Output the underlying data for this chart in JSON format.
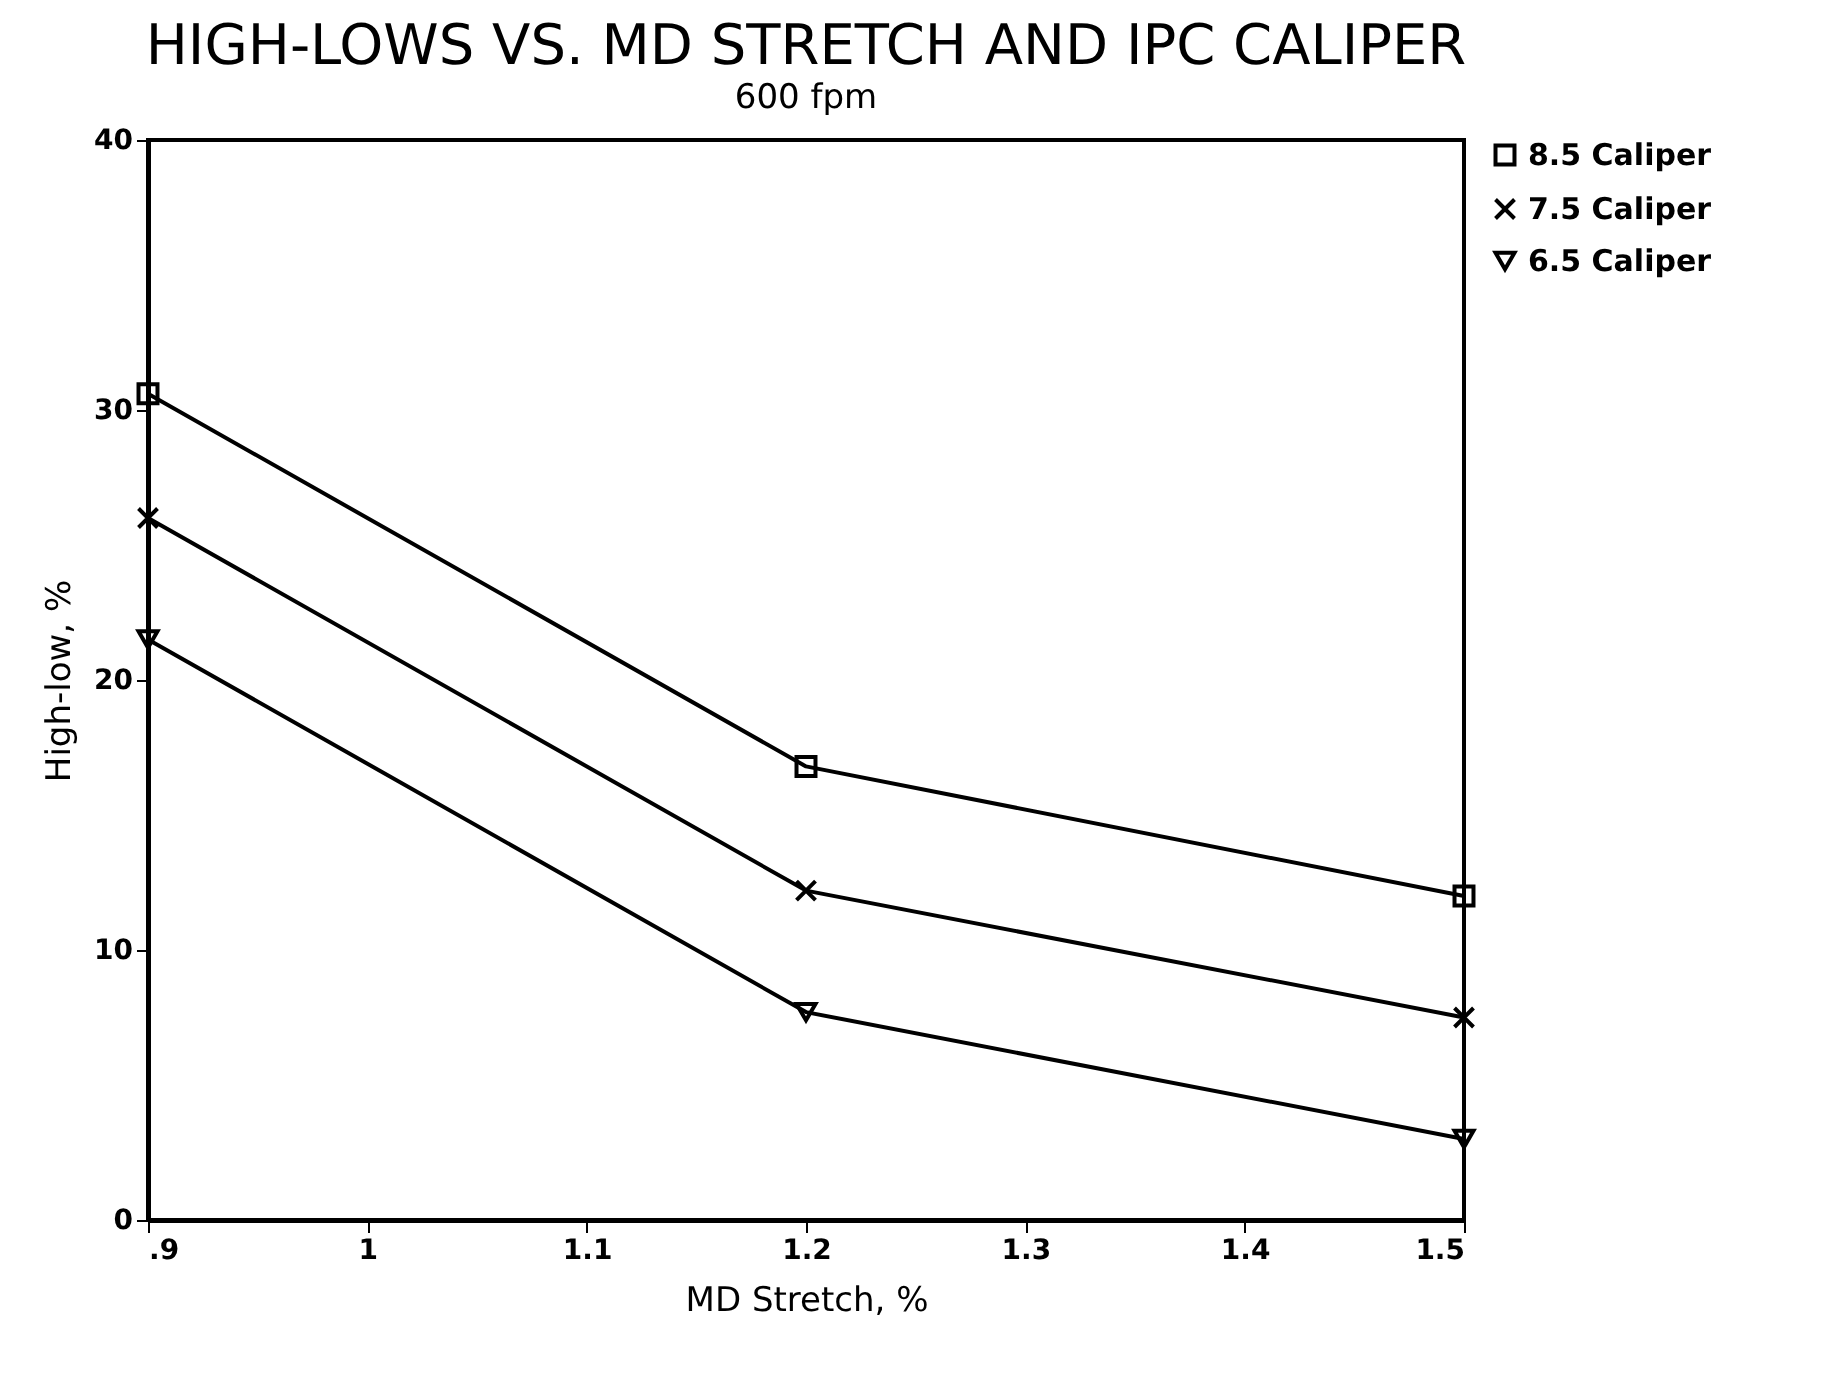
{
  "chart_data": {
    "type": "line",
    "title": "HIGH-LOWS VS. MD STRETCH AND IPC CALIPER",
    "subtitle": "600 fpm",
    "xlabel": "MD Stretch, %",
    "ylabel": "High-low, %",
    "x": [
      0.9,
      1.2,
      1.5
    ],
    "series": [
      {
        "name": "8.5 Caliper",
        "color": "#000000",
        "marker": "square",
        "values": [
          30.6,
          16.8,
          12.0
        ]
      },
      {
        "name": "7.5 Caliper",
        "color": "#000000",
        "marker": "cross",
        "values": [
          26.0,
          12.2,
          7.5
        ]
      },
      {
        "name": "6.5 Caliper",
        "color": "#000000",
        "marker": "triangle",
        "values": [
          21.5,
          7.7,
          3.0
        ]
      }
    ],
    "xlim": [
      0.9,
      1.5
    ],
    "xticks": [
      {
        "value": 0.9,
        "label": ".9"
      },
      1,
      1.1,
      1.2,
      1.3,
      1.4,
      1.5
    ],
    "ylim": [
      0,
      40
    ],
    "yticks": [
      0,
      10,
      20,
      30,
      40
    ],
    "legend": "top right",
    "line_style": "solid"
  }
}
